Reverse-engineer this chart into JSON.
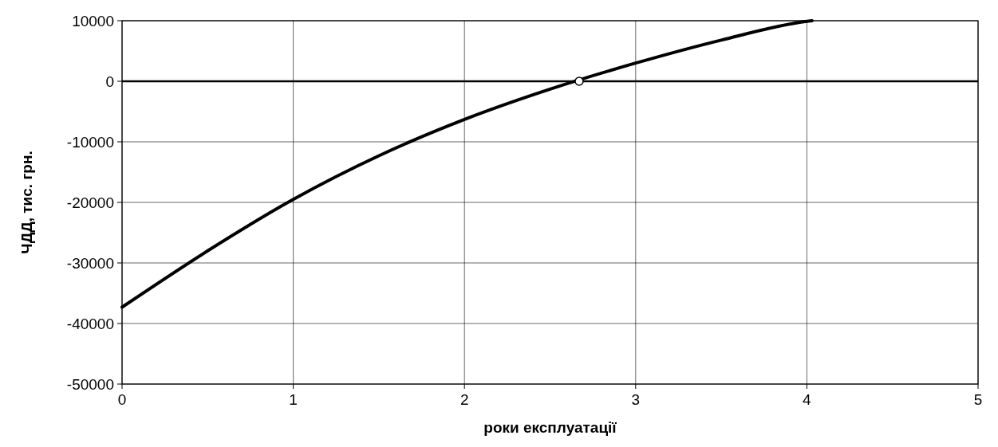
{
  "chart_data": {
    "type": "line",
    "xlabel": "роки експлуатації",
    "ylabel": "ЧДД, тис. грн.",
    "xlim": [
      0,
      5
    ],
    "xticks": [
      0,
      1,
      2,
      3,
      4,
      5
    ],
    "ylim": [
      -50000,
      10000
    ],
    "yticks": [
      -50000,
      -40000,
      -30000,
      -20000,
      -10000,
      0,
      10000
    ],
    "grid": true,
    "ref_lines": [
      {
        "axis": "y",
        "value": 0,
        "color": "#000000"
      }
    ],
    "series": [
      {
        "color": "#000000",
        "marker": "none",
        "line_style": "solid",
        "x": [
          0,
          0.5,
          1,
          1.5,
          2,
          2.5,
          3,
          3.5,
          4,
          4.03
        ],
        "values": [
          -37300,
          -28000,
          -19500,
          -12300,
          -6300,
          -1300,
          3000,
          6800,
          9900,
          10000
        ]
      },
      {
        "type": "scatter",
        "color": "#000000",
        "marker": "circle",
        "x": [
          2.67
        ],
        "values": [
          0
        ]
      }
    ]
  }
}
